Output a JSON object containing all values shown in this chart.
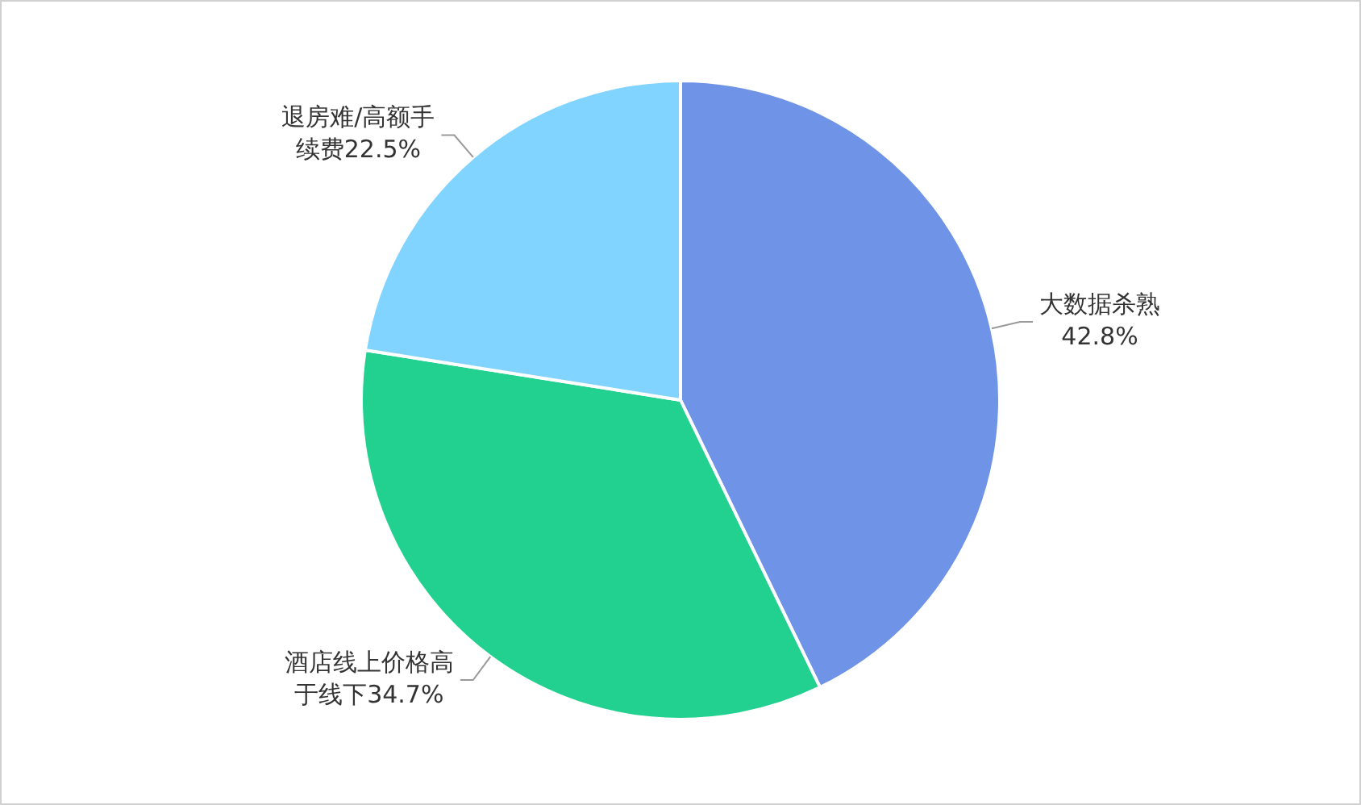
{
  "chart_data": {
    "type": "pie",
    "categories": [
      "大数据杀熟",
      "酒店线上价格高于线下",
      "退房难/高额手续费"
    ],
    "values": [
      42.8,
      34.7,
      22.5
    ],
    "colors": [
      "#6f93e6",
      "#22d18f",
      "#80d4ff"
    ],
    "value_labels": [
      "42.8%",
      "34.7%",
      "22.5%"
    ],
    "legend": false
  }
}
